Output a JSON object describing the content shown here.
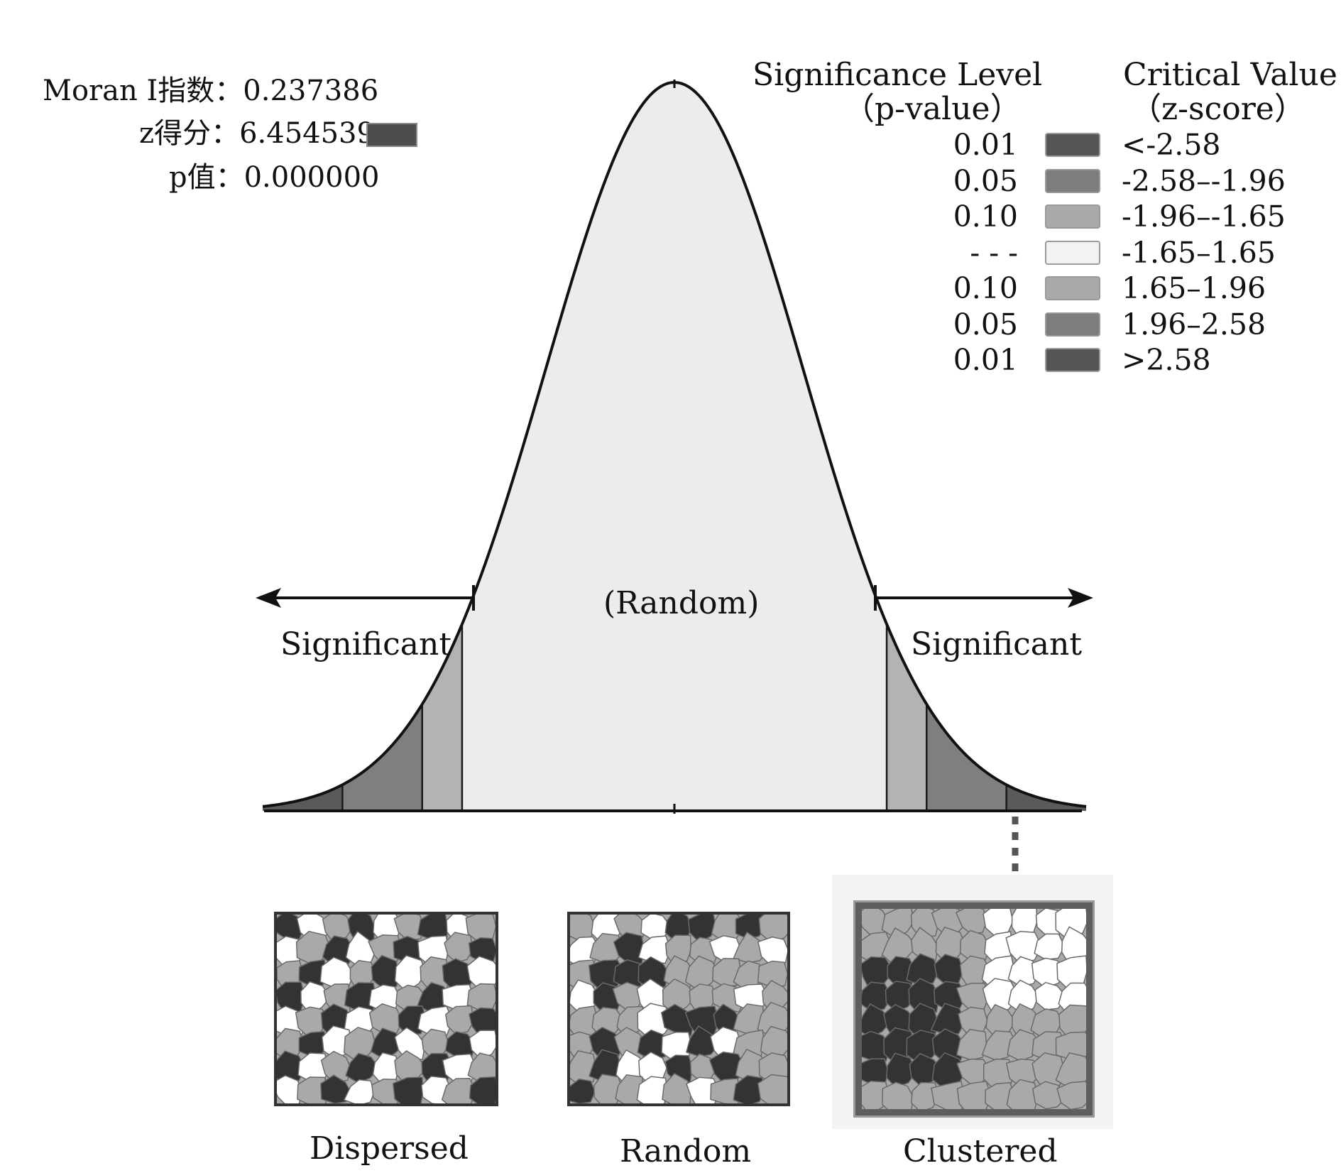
{
  "stats": {
    "moran_label": "Moran I指数：",
    "moran_value": "0.237386",
    "z_label": "z得分：",
    "z_value": "6.454539",
    "p_label": "p值：",
    "p_value": "0.000000",
    "z_marker_color": "#4d4d4d"
  },
  "legend": {
    "header_p_line1": "Significance Level",
    "header_p_line2": "（p-value）",
    "header_z_line1": "Critical Value",
    "header_z_line2": "（z-score）",
    "rows": [
      {
        "p": "0.01",
        "z": "<-2.58",
        "color": "#555555"
      },
      {
        "p": "0.05",
        "z": "-2.58–-1.96",
        "color": "#7d7d7d"
      },
      {
        "p": "0.10",
        "z": "-1.96–-1.65",
        "color": "#a9a9a9"
      },
      {
        "p": "- - -",
        "z": "-1.65–1.65",
        "color": "#f2f2f2"
      },
      {
        "p": "0.10",
        "z": "1.65–1.96",
        "color": "#a9a9a9"
      },
      {
        "p": "0.05",
        "z": "1.96–2.58",
        "color": "#7d7d7d"
      },
      {
        "p": "0.01",
        "z": ">2.58",
        "color": "#555555"
      }
    ]
  },
  "curve": {
    "center_label": "(Random)",
    "left_label": "Significant",
    "right_label": "Significant",
    "critical_z": [
      -2.58,
      -1.96,
      -1.65,
      1.65,
      1.96,
      2.58
    ],
    "z_range": [
      -3.2,
      3.2
    ],
    "fill_center": "#ececec",
    "fill_010": "#b3b3b3",
    "fill_005": "#7f7f7f",
    "fill_001": "#5a5a5a"
  },
  "maps": [
    {
      "caption": "Dispersed",
      "pattern": "dispersed"
    },
    {
      "caption": "Random",
      "pattern": "random"
    },
    {
      "caption": "Clustered",
      "pattern": "clustered"
    }
  ]
}
